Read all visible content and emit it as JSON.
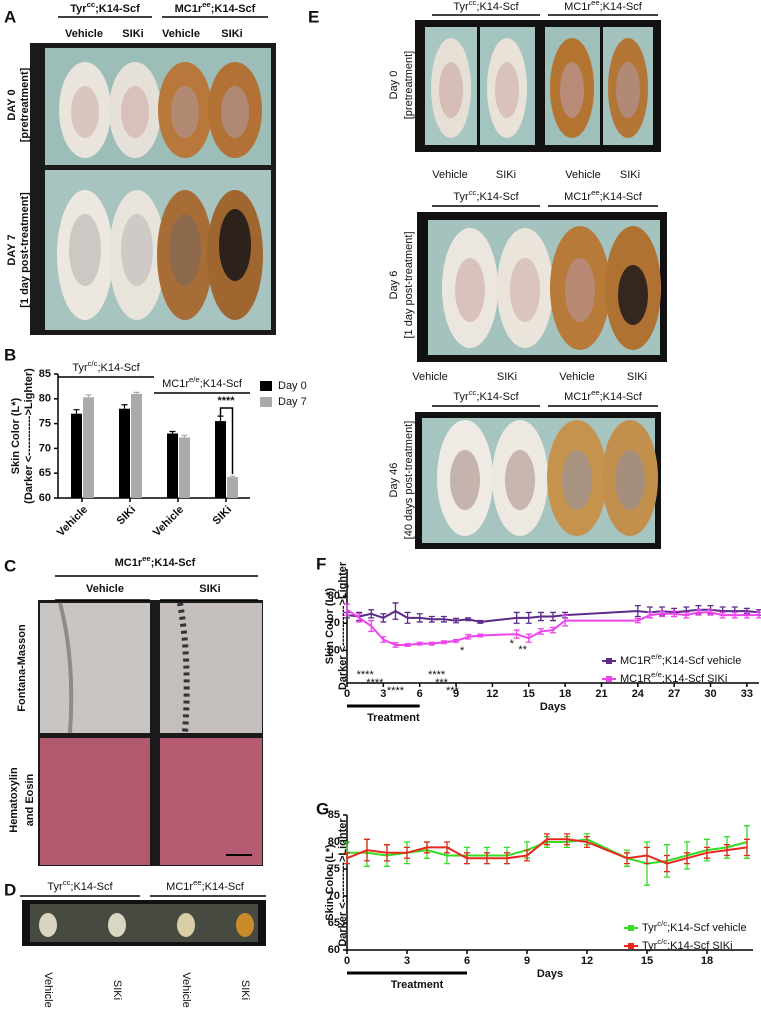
{
  "panels": {
    "A": {
      "letter": "A",
      "headers": [
        [
          "Tyr",
          "cc",
          ";K14-Scf"
        ],
        [
          "MC1r",
          "ee",
          ";K14-Scf"
        ]
      ],
      "columns": [
        "Vehicle",
        "SIKi",
        "Vehicle",
        "SIKi"
      ],
      "rows": [
        [
          "DAY 0",
          "[pretreatment]"
        ],
        [
          "DAY 7",
          "[1 day post-treatment]"
        ]
      ]
    },
    "C": {
      "letter": "C",
      "header": [
        "MC1r",
        "ee",
        ";K14-Scf"
      ],
      "columns": [
        "Vehicle",
        "SIKi"
      ],
      "rows": [
        [
          "Fontana-Masson"
        ],
        [
          "Hematoxylin",
          "and Eosin"
        ]
      ]
    },
    "D": {
      "letter": "D",
      "headers": [
        [
          "Tyr",
          "cc",
          ";K14-Scf"
        ],
        [
          "MC1r",
          "ee",
          ";K14-Scf"
        ]
      ],
      "columns": [
        "Vehicle",
        "SIKi",
        "Vehicle",
        "SIKi"
      ]
    },
    "E": {
      "letter": "E",
      "rows": [
        {
          "headers": [
            [
              "Tyr",
              "cc",
              ";K14-Scf"
            ],
            [
              "MC1r",
              "ee",
              ";K14-Scf"
            ]
          ],
          "columns": [
            "Vehicle",
            "SIKi",
            "Vehicle",
            "SIKi"
          ],
          "label": [
            "Day 0",
            "[pretreatment]"
          ]
        },
        {
          "headers": [
            [
              "Tyr",
              "cc",
              ";K14-Scf"
            ],
            [
              "MC1r",
              "ee",
              ";K14-Scf"
            ]
          ],
          "columns": [
            "Vehicle",
            "SIKi",
            "Vehicle",
            "SIKi"
          ],
          "label": [
            "Day 6",
            "[1 day post-treatment]"
          ]
        },
        {
          "headers": [
            [
              "Tyr",
              "cc",
              ";K14-Scf"
            ],
            [
              "MC1r",
              "ee",
              ";K14-Scf"
            ]
          ],
          "label": [
            "Day 46",
            "[40 days post-treatment]"
          ]
        }
      ]
    }
  },
  "chart_data": [
    {
      "panel": "B",
      "type": "bar",
      "categories": [
        "Vehicle",
        "SIKi",
        "Vehicle",
        "SIKi"
      ],
      "groups": [
        [
          "Tyr",
          "c/c",
          ";K14-Scf"
        ],
        [
          "MC1r",
          "e/e",
          ";K14-Scf"
        ]
      ],
      "series": [
        {
          "name": "Day 0",
          "color": "#000000",
          "values": [
            77,
            78,
            73,
            75.5
          ],
          "errors": [
            0.8,
            0.8,
            0.4,
            1.0
          ]
        },
        {
          "name": "Day 7",
          "color": "#aaaaaa",
          "values": [
            80.3,
            81,
            72.2,
            64.2
          ],
          "errors": [
            0.5,
            0.3,
            0.4,
            0.2
          ]
        }
      ],
      "ylim": [
        60,
        85
      ],
      "yticks": [
        60,
        65,
        70,
        75,
        80,
        85
      ],
      "ylabel": [
        "Skin Color (L*)",
        "(Darker <----------->Lighter)"
      ],
      "annotation": "****"
    },
    {
      "panel": "F",
      "type": "line",
      "series": [
        {
          "name": [
            "MC1R",
            "e/e",
            ";K14-Scf vehicle"
          ],
          "color": "#5c2a8a",
          "x": [
            0,
            1,
            2,
            3,
            4,
            5,
            6,
            7,
            8,
            9,
            10,
            11,
            14,
            15,
            16,
            17,
            18,
            24,
            25,
            26,
            27,
            28,
            29,
            30,
            31,
            32,
            33,
            34
          ],
          "values": [
            73,
            72.5,
            73.5,
            72,
            74.5,
            72,
            72,
            71.5,
            71.5,
            71,
            71.5,
            70.5,
            72,
            72,
            72.5,
            72.5,
            73,
            74.5,
            74,
            74.5,
            74,
            74.5,
            75,
            75,
            74.5,
            74.5,
            74.5,
            74
          ],
          "errors": [
            1,
            1.5,
            1.5,
            1.5,
            3,
            2,
            1.5,
            1,
            1,
            0.8,
            0.5,
            0.5,
            2,
            2,
            1.5,
            1.5,
            1,
            2,
            2,
            1.5,
            1.5,
            1.5,
            1.5,
            1.5,
            1.5,
            1.5,
            1,
            1
          ]
        },
        {
          "name": [
            "MC1R",
            "e/e",
            ";K14-Scf SIKi"
          ],
          "color": "#ee44ee",
          "x": [
            0,
            1,
            2,
            3,
            4,
            5,
            6,
            7,
            8,
            9,
            10,
            11,
            14,
            15,
            16,
            17,
            18,
            24,
            25,
            26,
            27,
            28,
            29,
            30,
            31,
            32,
            33,
            34
          ],
          "values": [
            75,
            72,
            69,
            64,
            62,
            62,
            62.5,
            62.5,
            63,
            63.5,
            65,
            65.5,
            66,
            64.5,
            67,
            67.5,
            71,
            71,
            73,
            73.5,
            73.5,
            73,
            74,
            74,
            73,
            73,
            73,
            73
          ],
          "errors": [
            2,
            1.5,
            2,
            1,
            0.8,
            0.5,
            0.5,
            0.5,
            0.5,
            0.5,
            0.8,
            0.5,
            1.5,
            1.5,
            1,
            1,
            2,
            0.8,
            1,
            1,
            1,
            1,
            1,
            1,
            1,
            1,
            1,
            1
          ]
        }
      ],
      "xlim": [
        0,
        34
      ],
      "xticks": [
        0,
        3,
        6,
        9,
        12,
        15,
        18,
        21,
        24,
        27,
        30,
        33
      ],
      "ylim": [
        48,
        90
      ],
      "yticks": [
        60,
        70,
        80
      ],
      "xlabel": "Days",
      "ylabel": [
        "Skin Color (L*)",
        "Darker <----------->Lighter"
      ],
      "treatment": {
        "label": "Treatment",
        "x": [
          0,
          6
        ]
      },
      "annotations": [
        {
          "text": "****",
          "x": 1.5
        },
        {
          "text": "****",
          "x": 2.3
        },
        {
          "text": "****",
          "x": 4
        },
        {
          "text": "****",
          "x": 7.4
        },
        {
          "text": "***",
          "x": 7.8
        },
        {
          "text": "***",
          "x": 8.7
        },
        {
          "text": "*",
          "x": 9.5
        },
        {
          "text": "*",
          "x": 13.6
        },
        {
          "text": "**",
          "x": 14.5
        }
      ]
    },
    {
      "panel": "G",
      "type": "line",
      "series": [
        {
          "name": [
            "Tyr",
            "c/c",
            ";K14-Scf vehicle"
          ],
          "color": "#33dd22",
          "x": [
            0,
            1,
            2,
            3,
            4,
            5,
            6,
            7,
            8,
            9,
            10,
            11,
            12,
            14,
            15,
            16,
            17,
            18,
            19,
            20
          ],
          "values": [
            78,
            78,
            77.5,
            78,
            78.5,
            77.5,
            77.5,
            77.5,
            77.5,
            78.5,
            80,
            80,
            80.5,
            77,
            76,
            76.5,
            77.5,
            78.5,
            79,
            80
          ],
          "errors": [
            2,
            2.5,
            2,
            2,
            1.5,
            1.5,
            1.5,
            1.5,
            1.5,
            1.5,
            1,
            1,
            1,
            1.5,
            4,
            3,
            2.5,
            2,
            2,
            3
          ]
        },
        {
          "name": [
            "Tyr",
            "c/c",
            ";K14-Scf  SIKi"
          ],
          "color": "#e8281e",
          "x": [
            0,
            1,
            2,
            3,
            4,
            5,
            6,
            7,
            8,
            9,
            10,
            11,
            12,
            14,
            15,
            16,
            17,
            18,
            19,
            20
          ],
          "values": [
            77,
            78.5,
            78,
            78,
            79,
            79,
            77,
            77,
            77,
            77.5,
            80.5,
            80.5,
            80,
            77,
            77.5,
            76,
            77,
            78,
            78.5,
            79
          ],
          "errors": [
            1,
            2,
            1.5,
            1,
            1,
            1,
            1,
            1,
            1,
            1,
            1,
            1,
            1,
            1,
            1.5,
            1.5,
            1,
            1,
            1,
            1.5
          ]
        }
      ],
      "xlim": [
        0,
        20.3
      ],
      "xticks": [
        0,
        3,
        6,
        9,
        12,
        15,
        18
      ],
      "ylim": [
        60,
        85
      ],
      "yticks": [
        60,
        65,
        70,
        75,
        80,
        85
      ],
      "xlabel": "Days",
      "ylabel": [
        "Skin Color (L*)",
        "Darker <----------->Lighter"
      ],
      "treatment": {
        "label": "Treatment",
        "x": [
          0,
          6
        ]
      }
    }
  ]
}
